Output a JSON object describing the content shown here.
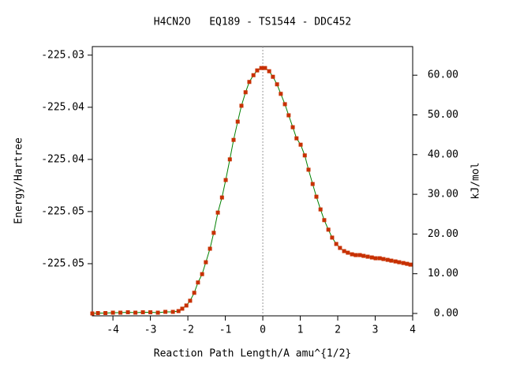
{
  "chart_data": {
    "type": "line",
    "title": "H4CN2O   EQ189 - TS1544 - DDC452",
    "x_label": "Reaction Path Length/A amu^{1/2}",
    "y_label": "Energy/Hartree",
    "y2_label": "kJ/mol",
    "xlim": [
      -4.55,
      4
    ],
    "xticks": [
      -4,
      -3,
      -2,
      -1,
      0,
      1,
      2,
      3,
      4
    ],
    "ylim": [
      -225.055,
      -225.02918
    ],
    "yticks": [
      {
        "value": -225.03,
        "label": "-225.03"
      },
      {
        "value": -225.035,
        "label": "-225.04"
      },
      {
        "value": -225.04,
        "label": "-225.04"
      },
      {
        "value": -225.045,
        "label": "-225.05"
      },
      {
        "value": -225.05,
        "label": "-225.05"
      }
    ],
    "y2lim": [
      -0.6,
      67.2
    ],
    "y2ticks": [
      {
        "value": 0,
        "label": "0.00"
      },
      {
        "value": 10,
        "label": "10.00"
      },
      {
        "value": 20,
        "label": "20.00"
      },
      {
        "value": 30,
        "label": "30.00"
      },
      {
        "value": 40,
        "label": "40.00"
      },
      {
        "value": 50,
        "label": "50.00"
      },
      {
        "value": 60,
        "label": "60.00"
      }
    ],
    "x": [
      -4.55,
      -4.4,
      -4.2,
      -4.0,
      -3.8,
      -3.6,
      -3.4,
      -3.2,
      -3.0,
      -2.8,
      -2.6,
      -2.4,
      -2.25,
      -2.15,
      -2.04,
      -1.94,
      -1.83,
      -1.73,
      -1.62,
      -1.52,
      -1.41,
      -1.31,
      -1.2,
      -1.09,
      -0.99,
      -0.88,
      -0.78,
      -0.67,
      -0.57,
      -0.46,
      -0.36,
      -0.25,
      -0.15,
      -0.04,
      0.06,
      0.17,
      0.27,
      0.38,
      0.48,
      0.59,
      0.69,
      0.8,
      0.9,
      1.01,
      1.12,
      1.22,
      1.33,
      1.43,
      1.54,
      1.64,
      1.75,
      1.85,
      1.96,
      2.06,
      2.17,
      2.27,
      2.38,
      2.48,
      2.59,
      2.69,
      2.8,
      2.91,
      3.01,
      3.12,
      3.22,
      3.33,
      3.43,
      3.54,
      3.64,
      3.75,
      3.85,
      3.94
    ],
    "series": [
      {
        "axis": "y2",
        "line_color": "#008000",
        "color": "#c83000",
        "values": [
          0,
          0.1,
          0.1,
          0.2,
          0.2,
          0.3,
          0.2,
          0.3,
          0.3,
          0.2,
          0.4,
          0.4,
          0.6,
          1.2,
          2.0,
          3.2,
          5.2,
          7.8,
          9.9,
          12.9,
          16.3,
          20.3,
          25.4,
          29.2,
          33.6,
          38.8,
          43.7,
          48.3,
          52.3,
          55.7,
          58.3,
          60.0,
          61.2,
          61.8,
          61.8,
          61.0,
          59.6,
          57.7,
          55.3,
          52.7,
          49.9,
          46.9,
          44.1,
          42.5,
          39.8,
          36.2,
          32.6,
          29.4,
          26.2,
          23.5,
          21.1,
          19.1,
          17.5,
          16.5,
          15.7,
          15.3,
          14.9,
          14.7,
          14.7,
          14.5,
          14.3,
          14.1,
          13.9,
          13.9,
          13.7,
          13.5,
          13.3,
          13.1,
          12.9,
          12.7,
          12.5,
          12.3
        ]
      }
    ],
    "reference_line_x": 0
  }
}
